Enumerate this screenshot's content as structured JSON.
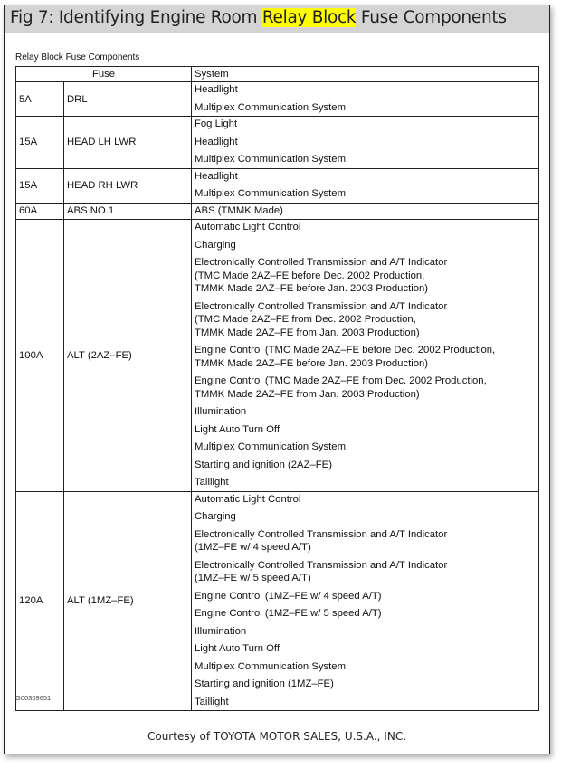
{
  "header": {
    "title_prefix": "Fig 7: Identifying Engine Room ",
    "title_highlight": "Relay Block",
    "title_suffix": " Fuse Components",
    "highlight_color": "#ffff00"
  },
  "table": {
    "caption": "Relay Block Fuse Components",
    "headers": {
      "fuse": "Fuse",
      "system": "System"
    },
    "rows": [
      {
        "amp": "5A",
        "name": "DRL",
        "systems": [
          "Headlight",
          "Multiplex Communication System"
        ]
      },
      {
        "amp": "15A",
        "name": "HEAD LH LWR",
        "systems": [
          "Fog Light",
          "Headlight",
          "Multiplex Communication System"
        ]
      },
      {
        "amp": "15A",
        "name": "HEAD RH LWR",
        "systems": [
          "Headlight",
          "Multiplex Communication System"
        ]
      },
      {
        "amp": "60A",
        "name": "ABS NO.1",
        "systems": [
          "ABS (TMMK Made)"
        ]
      },
      {
        "amp": "100A",
        "name": "ALT (2AZ–FE)",
        "systems": [
          "Automatic Light Control",
          "Charging",
          "Electronically Controlled Transmission and A/T Indicator\n(TMC Made 2AZ–FE before Dec. 2002 Production,\nTMMK Made 2AZ–FE before Jan. 2003 Production)",
          "Electronically Controlled Transmission and A/T Indicator\n(TMC Made 2AZ–FE from Dec. 2002 Production,\nTMMK Made 2AZ–FE from Jan. 2003 Production)",
          "Engine Control (TMC Made 2AZ–FE before Dec. 2002 Production,\nTMMK Made 2AZ–FE before Jan. 2003 Production)",
          "Engine Control (TMC Made 2AZ–FE from Dec. 2002 Production,\nTMMK Made 2AZ–FE from Jan. 2003 Production)",
          "Illumination",
          "Light Auto Turn Off",
          "Multiplex Communication System",
          "Starting and ignition (2AZ–FE)",
          "Taillight"
        ]
      },
      {
        "amp": "120A",
        "name": "ALT (1MZ–FE)",
        "systems": [
          "Automatic Light Control",
          "Charging",
          "Electronically Controlled Transmission and A/T Indicator\n(1MZ–FE w/ 4 speed A/T)",
          "Electronically Controlled Transmission and A/T Indicator\n(1MZ–FE w/ 5 speed A/T)",
          "Engine Control (1MZ–FE w/ 4 speed A/T)",
          "Engine Control (1MZ–FE w/ 5 speed A/T)",
          "Illumination",
          "Light Auto Turn Off",
          "Multiplex Communication System",
          "Starting and ignition (1MZ–FE)",
          "Taillight"
        ]
      }
    ],
    "figure_code": "G00309651"
  },
  "footer": {
    "courtesy": "Courtesy of TOYOTA MOTOR SALES, U.S.A., INC."
  }
}
